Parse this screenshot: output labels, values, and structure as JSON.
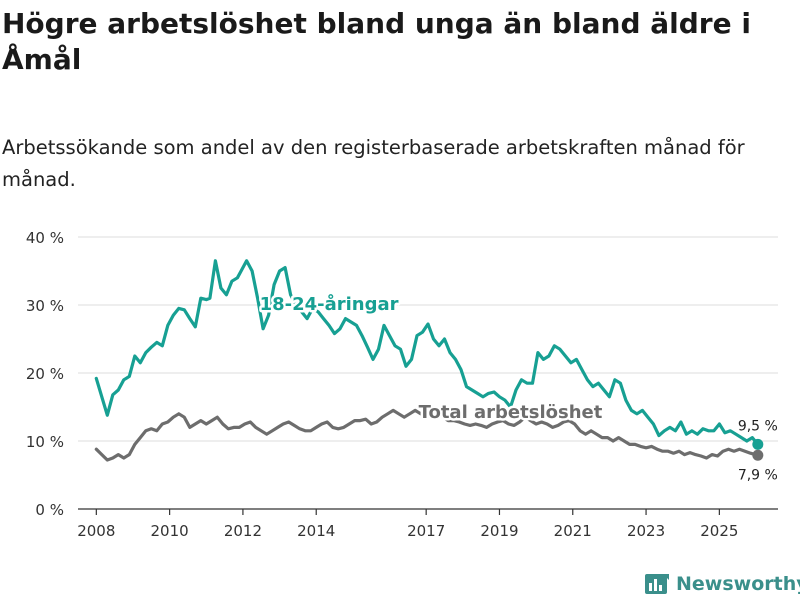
{
  "title": "Högre arbetslöshet bland unga än bland äldre i Åmål",
  "subtitle": "Arbetssökande som andel av den registerbaserade arbetskraften månad för månad.",
  "brand": {
    "name": "Newsworthy",
    "color": "#3a8f8b"
  },
  "colors": {
    "youth": "#17a093",
    "total": "#6d6d6d",
    "grid": "#dcdcdc",
    "axis": "#333333"
  },
  "chart_data": {
    "type": "line",
    "title": "Högre arbetslöshet bland unga än bland äldre i Åmål",
    "xlabel": "",
    "ylabel": "",
    "xlim": [
      2007.5,
      2026.6
    ],
    "ylim": [
      0,
      40
    ],
    "yticks": [
      0,
      10,
      20,
      30,
      40
    ],
    "ytick_labels": [
      "0 %",
      "10 %",
      "20 %",
      "30 %",
      "40 %"
    ],
    "xticks": [
      2008,
      2010,
      2012,
      2014,
      2017,
      2019,
      2021,
      2023,
      2025
    ],
    "xtick_labels": [
      "2008",
      "2010",
      "2012",
      "2014",
      "2017",
      "2019",
      "2021",
      "2023",
      "2025"
    ],
    "grid": true,
    "series": [
      {
        "name": "18-24-åringar",
        "label": "18-24-åringar",
        "color": "#17a093",
        "end_label": "9,5 %",
        "x": [
          2008.0,
          2008.15,
          2008.3,
          2008.45,
          2008.6,
          2008.75,
          2008.9,
          2009.05,
          2009.2,
          2009.35,
          2009.5,
          2009.65,
          2009.8,
          2009.95,
          2010.1,
          2010.25,
          2010.4,
          2010.55,
          2010.7,
          2010.85,
          2011.0,
          2011.1,
          2011.25,
          2011.4,
          2011.55,
          2011.7,
          2011.85,
          2011.95,
          2012.1,
          2012.25,
          2012.4,
          2012.55,
          2012.7,
          2012.85,
          2013.0,
          2013.15,
          2013.3,
          2013.45,
          2013.6,
          2013.75,
          2013.9,
          2014.05,
          2014.2,
          2014.35,
          2014.5,
          2014.65,
          2014.8,
          2014.95,
          2015.1,
          2015.25,
          2015.4,
          2015.55,
          2015.7,
          2015.85,
          2016.0,
          2016.15,
          2016.3,
          2016.45,
          2016.6,
          2016.75,
          2016.9,
          2017.05,
          2017.2,
          2017.35,
          2017.5,
          2017.65,
          2017.8,
          2017.95,
          2018.1,
          2018.25,
          2018.4,
          2018.55,
          2018.7,
          2018.85,
          2019.0,
          2019.15,
          2019.3,
          2019.45,
          2019.6,
          2019.75,
          2019.9,
          2020.05,
          2020.2,
          2020.35,
          2020.5,
          2020.65,
          2020.8,
          2020.95,
          2021.1,
          2021.25,
          2021.4,
          2021.55,
          2021.7,
          2021.85,
          2022.0,
          2022.15,
          2022.3,
          2022.45,
          2022.6,
          2022.75,
          2022.9,
          2023.05,
          2023.2,
          2023.35,
          2023.5,
          2023.65,
          2023.8,
          2023.95,
          2024.1,
          2024.25,
          2024.4,
          2024.55,
          2024.7,
          2024.85,
          2025.0,
          2025.15,
          2025.3,
          2025.45,
          2025.6,
          2025.75,
          2025.9,
          2026.05
        ],
        "y": [
          19.2,
          16.5,
          13.8,
          16.8,
          17.5,
          19.0,
          19.5,
          22.5,
          21.5,
          23.0,
          23.8,
          24.5,
          24.0,
          27.0,
          28.5,
          29.5,
          29.3,
          28.0,
          26.8,
          31.0,
          30.8,
          31.0,
          36.5,
          32.5,
          31.5,
          33.5,
          34.0,
          35.0,
          36.5,
          35.0,
          31.0,
          26.5,
          28.5,
          33.0,
          35.0,
          35.5,
          31.5,
          30.0,
          29.0,
          28.0,
          29.5,
          29.0,
          28.0,
          27.0,
          25.8,
          26.5,
          28.0,
          27.5,
          27.0,
          25.5,
          23.8,
          22.0,
          23.5,
          27.0,
          25.5,
          24.0,
          23.5,
          21.0,
          22.0,
          25.5,
          26.0,
          27.2,
          25.0,
          24.0,
          25.0,
          23.0,
          22.0,
          20.5,
          18.0,
          17.5,
          17.0,
          16.5,
          17.0,
          17.2,
          16.5,
          16.0,
          15.0,
          17.5,
          19.0,
          18.5,
          18.5,
          23.0,
          22.0,
          22.5,
          24.0,
          23.5,
          22.5,
          21.5,
          22.0,
          20.5,
          19.0,
          18.0,
          18.5,
          17.5,
          16.5,
          19.0,
          18.5,
          16.0,
          14.5,
          14.0,
          14.5,
          13.5,
          12.5,
          10.8,
          11.5,
          12.0,
          11.5,
          12.8,
          11.0,
          11.5,
          11.0,
          11.8,
          11.5,
          11.5,
          12.5,
          11.2,
          11.5,
          11.0,
          10.5,
          10.0,
          10.5,
          9.5
        ]
      },
      {
        "name": "Total arbetslöshet",
        "label": "Total arbetslöshet",
        "color": "#6d6d6d",
        "end_label": "7,9 %",
        "x": [
          2008.0,
          2008.15,
          2008.3,
          2008.45,
          2008.6,
          2008.75,
          2008.9,
          2009.05,
          2009.2,
          2009.35,
          2009.5,
          2009.65,
          2009.8,
          2009.95,
          2010.1,
          2010.25,
          2010.4,
          2010.55,
          2010.7,
          2010.85,
          2011.0,
          2011.15,
          2011.3,
          2011.45,
          2011.6,
          2011.75,
          2011.9,
          2012.05,
          2012.2,
          2012.35,
          2012.5,
          2012.65,
          2012.8,
          2012.95,
          2013.1,
          2013.25,
          2013.4,
          2013.55,
          2013.7,
          2013.85,
          2014.0,
          2014.15,
          2014.3,
          2014.45,
          2014.6,
          2014.75,
          2014.9,
          2015.05,
          2015.2,
          2015.35,
          2015.5,
          2015.65,
          2015.8,
          2015.95,
          2016.1,
          2016.25,
          2016.4,
          2016.55,
          2016.7,
          2016.85,
          2017.0,
          2017.15,
          2017.3,
          2017.45,
          2017.6,
          2017.75,
          2017.9,
          2018.05,
          2018.2,
          2018.35,
          2018.5,
          2018.65,
          2018.8,
          2018.95,
          2019.1,
          2019.25,
          2019.4,
          2019.55,
          2019.7,
          2019.85,
          2020.0,
          2020.15,
          2020.3,
          2020.45,
          2020.6,
          2020.75,
          2020.9,
          2021.05,
          2021.2,
          2021.35,
          2021.5,
          2021.65,
          2021.8,
          2021.95,
          2022.1,
          2022.25,
          2022.4,
          2022.55,
          2022.7,
          2022.85,
          2023.0,
          2023.15,
          2023.3,
          2023.45,
          2023.6,
          2023.75,
          2023.9,
          2024.05,
          2024.2,
          2024.35,
          2024.5,
          2024.65,
          2024.8,
          2024.95,
          2025.1,
          2025.25,
          2025.4,
          2025.55,
          2025.7,
          2025.85,
          2026.05
        ],
        "y": [
          8.8,
          8.0,
          7.2,
          7.5,
          8.0,
          7.5,
          8.0,
          9.5,
          10.5,
          11.5,
          11.8,
          11.5,
          12.5,
          12.8,
          13.5,
          14.0,
          13.5,
          12.0,
          12.5,
          13.0,
          12.5,
          13.0,
          13.5,
          12.5,
          11.8,
          12.0,
          12.0,
          12.5,
          12.8,
          12.0,
          11.5,
          11.0,
          11.5,
          12.0,
          12.5,
          12.8,
          12.3,
          11.8,
          11.5,
          11.5,
          12.0,
          12.5,
          12.8,
          12.0,
          11.8,
          12.0,
          12.5,
          13.0,
          13.0,
          13.2,
          12.5,
          12.8,
          13.5,
          14.0,
          14.5,
          14.0,
          13.5,
          14.0,
          14.5,
          14.0,
          14.8,
          14.5,
          14.0,
          13.5,
          13.0,
          13.0,
          12.8,
          12.5,
          12.3,
          12.5,
          12.3,
          12.0,
          12.5,
          12.8,
          13.0,
          12.5,
          12.3,
          12.8,
          13.5,
          13.0,
          12.5,
          12.8,
          12.5,
          12.0,
          12.3,
          12.8,
          13.0,
          12.5,
          11.5,
          11.0,
          11.5,
          11.0,
          10.5,
          10.5,
          10.0,
          10.5,
          10.0,
          9.5,
          9.5,
          9.2,
          9.0,
          9.2,
          8.8,
          8.5,
          8.5,
          8.2,
          8.5,
          8.0,
          8.3,
          8.0,
          7.8,
          7.5,
          8.0,
          7.8,
          8.5,
          8.8,
          8.5,
          8.8,
          8.5,
          8.2,
          7.9
        ]
      }
    ]
  }
}
